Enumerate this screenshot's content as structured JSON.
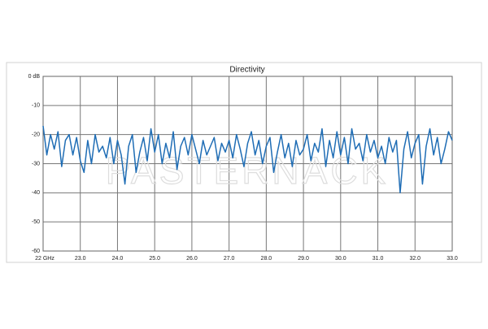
{
  "chart_data": {
    "type": "line",
    "title": "Directivity",
    "watermark": "PASTERNACK",
    "x": [
      22.0,
      22.1,
      22.2,
      22.3,
      22.4,
      22.5,
      22.6,
      22.7,
      22.8,
      22.9,
      23.0,
      23.1,
      23.2,
      23.3,
      23.4,
      23.5,
      23.6,
      23.7,
      23.8,
      23.9,
      24.0,
      24.1,
      24.2,
      24.3,
      24.4,
      24.5,
      24.6,
      24.7,
      24.8,
      24.9,
      25.0,
      25.1,
      25.2,
      25.3,
      25.4,
      25.5,
      25.6,
      25.7,
      25.8,
      25.9,
      26.0,
      26.1,
      26.2,
      26.3,
      26.4,
      26.5,
      26.6,
      26.7,
      26.8,
      26.9,
      27.0,
      27.1,
      27.2,
      27.3,
      27.4,
      27.5,
      27.6,
      27.7,
      27.8,
      27.9,
      28.0,
      28.1,
      28.2,
      28.3,
      28.4,
      28.5,
      28.6,
      28.7,
      28.8,
      28.9,
      29.0,
      29.1,
      29.2,
      29.3,
      29.4,
      29.5,
      29.6,
      29.7,
      29.8,
      29.9,
      30.0,
      30.1,
      30.2,
      30.3,
      30.4,
      30.5,
      30.6,
      30.7,
      30.8,
      30.9,
      31.0,
      31.1,
      31.2,
      31.3,
      31.4,
      31.5,
      31.6,
      31.7,
      31.8,
      31.9,
      32.0,
      32.1,
      32.2,
      32.3,
      32.4,
      32.5,
      32.6,
      32.7,
      32.8,
      32.9,
      33.0
    ],
    "values": [
      -17,
      -27,
      -20,
      -25,
      -19,
      -31,
      -22,
      -20,
      -27,
      -21,
      -29,
      -33,
      -22,
      -30,
      -20,
      -26,
      -24,
      -28,
      -21,
      -30,
      -22,
      -27,
      -37,
      -24,
      -20,
      -33,
      -26,
      -21,
      -29,
      -18,
      -26,
      -20,
      -30,
      -23,
      -28,
      -19,
      -32,
      -24,
      -21,
      -27,
      -20,
      -25,
      -30,
      -22,
      -27,
      -24,
      -21,
      -29,
      -23,
      -26,
      -22,
      -28,
      -20,
      -25,
      -31,
      -23,
      -19,
      -27,
      -22,
      -30,
      -24,
      -21,
      -33,
      -26,
      -20,
      -28,
      -23,
      -31,
      -22,
      -27,
      -25,
      -20,
      -29,
      -23,
      -26,
      -18,
      -31,
      -22,
      -28,
      -19,
      -27,
      -21,
      -30,
      -18,
      -25,
      -23,
      -29,
      -20,
      -26,
      -22,
      -28,
      -24,
      -30,
      -21,
      -26,
      -22,
      -40,
      -25,
      -19,
      -28,
      -23,
      -20,
      -37,
      -24,
      -18,
      -27,
      -21,
      -30,
      -25,
      -19,
      -22
    ],
    "color": "#1f6db5",
    "xlim": [
      22,
      33
    ],
    "ylim": [
      -60,
      0
    ],
    "xticks": [
      {
        "value": 22,
        "label": "22 GHz"
      },
      {
        "value": 23,
        "label": "23.0"
      },
      {
        "value": 24,
        "label": "24.0"
      },
      {
        "value": 25,
        "label": "25.0"
      },
      {
        "value": 26,
        "label": "26.0"
      },
      {
        "value": 27,
        "label": "27.0"
      },
      {
        "value": 28,
        "label": "28.0"
      },
      {
        "value": 29,
        "label": "29.0"
      },
      {
        "value": 30,
        "label": "30.0"
      },
      {
        "value": 31,
        "label": "31.0"
      },
      {
        "value": 32,
        "label": "32.0"
      },
      {
        "value": 33,
        "label": "33.0"
      }
    ],
    "yticks": [
      {
        "value": 0,
        "label": "0 dB"
      },
      -10,
      -20,
      -30,
      -40,
      -50,
      -60
    ],
    "grid": true
  }
}
